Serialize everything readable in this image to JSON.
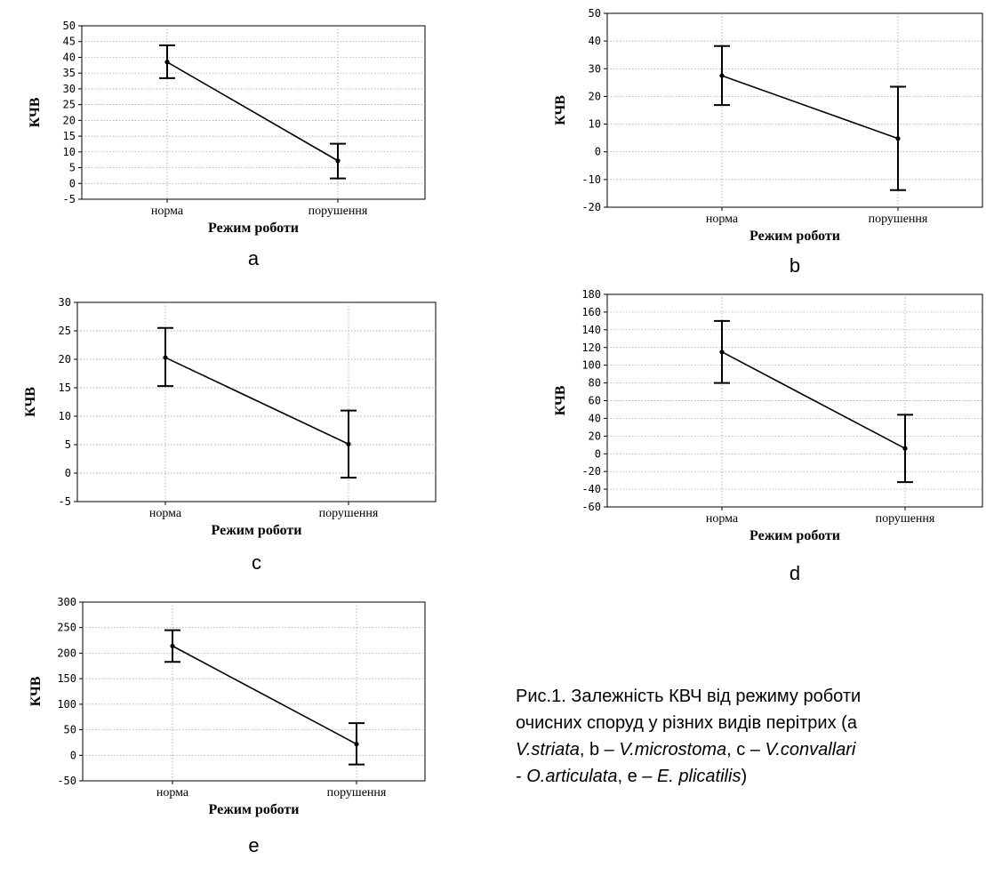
{
  "chart_data": [
    {
      "id": "a",
      "type": "line",
      "panel_label": "a",
      "categories": [
        "норма",
        "порушення"
      ],
      "means": [
        38.5,
        7.2
      ],
      "upper": [
        43.8,
        12.6
      ],
      "lower": [
        33.4,
        1.6
      ],
      "ylim": [
        -5,
        50
      ],
      "yticks": [
        -5,
        0,
        5,
        10,
        15,
        20,
        25,
        30,
        35,
        40,
        45,
        50
      ],
      "xlabel": "Режим роботи",
      "ylabel": "КЧВ",
      "grid": true
    },
    {
      "id": "b",
      "type": "line",
      "panel_label": "b",
      "categories": [
        "норма",
        "порушення"
      ],
      "means": [
        27.5,
        4.8
      ],
      "upper": [
        38.2,
        23.5
      ],
      "lower": [
        16.9,
        -13.8
      ],
      "ylim": [
        -20,
        50
      ],
      "yticks": [
        -20,
        -10,
        0,
        10,
        20,
        30,
        40,
        50
      ],
      "xlabel": "Режим роботи",
      "ylabel": "КЧВ",
      "grid": true
    },
    {
      "id": "c",
      "type": "line",
      "panel_label": "c",
      "categories": [
        "норма",
        "порушення"
      ],
      "means": [
        20.3,
        5.1
      ],
      "upper": [
        25.5,
        11.0
      ],
      "lower": [
        15.3,
        -0.8
      ],
      "ylim": [
        -5,
        30
      ],
      "yticks": [
        -5,
        0,
        5,
        10,
        15,
        20,
        25,
        30
      ],
      "xlabel": "Режим роботи",
      "ylabel": "КЧВ",
      "grid": true
    },
    {
      "id": "d",
      "type": "line",
      "panel_label": "d",
      "categories": [
        "норма",
        "порушення"
      ],
      "means": [
        115,
        6
      ],
      "upper": [
        150,
        44
      ],
      "lower": [
        80,
        -32
      ],
      "ylim": [
        -60,
        180
      ],
      "yticks": [
        -60,
        -40,
        -20,
        0,
        20,
        40,
        60,
        80,
        100,
        120,
        140,
        160,
        180
      ],
      "xlabel": "Режим роботи",
      "ylabel": "КЧВ",
      "grid": true
    },
    {
      "id": "e",
      "type": "line",
      "panel_label": "e",
      "categories": [
        "норма",
        "порушення"
      ],
      "means": [
        214,
        22
      ],
      "upper": [
        245,
        63
      ],
      "lower": [
        183,
        -18
      ],
      "ylim": [
        -50,
        300
      ],
      "yticks": [
        -50,
        0,
        50,
        100,
        150,
        200,
        250,
        300
      ],
      "xlabel": "Режим роботи",
      "ylabel": "КЧВ",
      "grid": true
    }
  ],
  "caption": {
    "line1": "Рис.1. Залежність КВЧ від режиму роботи",
    "line2": "очисних споруд у різних видів перітрих (а",
    "line3_it1": "V.striata",
    "line3_t1": ", b – ",
    "line3_it2": "V.microstoma",
    "line3_t2": ", c – ",
    "line3_it3": "V.convallari",
    "line4_t1": "- ",
    "line4_it1": "O.articulata",
    "line4_t2": ", e – ",
    "line4_it2": "E. plicatilis",
    "line4_t3": ")"
  }
}
